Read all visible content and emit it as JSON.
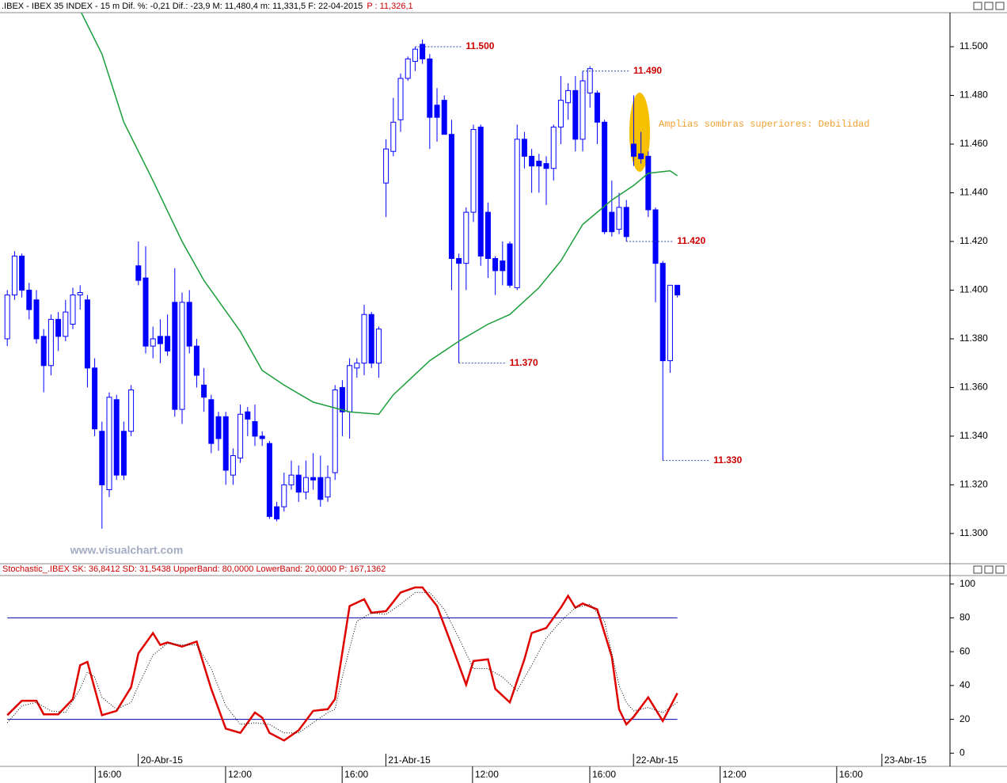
{
  "header": {
    "text": ".IBEX - IBEX 35 INDEX -  15 m Dif. %: -0,21 Dif.: -23,9 M: 11,480,4 m: 11,331,5 F: 22-04-2015",
    "price": "P : 11,326,1"
  },
  "chart_data": [
    {
      "type": "candlestick",
      "watermark": "www.visualchart.com",
      "annotation": "Amplias sombras superiores: Debilidad",
      "color": "#0000ff",
      "up_fill": "#ffffff",
      "open": [
        11.38,
        11.398,
        11.414,
        11.4,
        11.396,
        11.381,
        11.369,
        11.388,
        11.381,
        11.386,
        11.398,
        11.396,
        11.368,
        11.342,
        11.318,
        11.355,
        11.342,
        11.342,
        11.41,
        11.405,
        11.377,
        11.381,
        11.381,
        11.395,
        11.351,
        11.395,
        11.377,
        11.361,
        11.355,
        11.348,
        11.348,
        11.324,
        11.331,
        11.35,
        11.346,
        11.34,
        11.337,
        11.311,
        11.311,
        11.32,
        11.324,
        11.317,
        11.323,
        11.323,
        11.315,
        11.325,
        11.36,
        11.35,
        11.368,
        11.37,
        11.39,
        11.37,
        11.444,
        11.457,
        11.47,
        11.487,
        11.494,
        11.501,
        11.495,
        11.476,
        11.478,
        11.464,
        11.413,
        11.411,
        11.432,
        11.467,
        11.432,
        11.413,
        11.412,
        11.419,
        11.401,
        11.462,
        11.455,
        11.453,
        11.452,
        11.45,
        11.467,
        11.477,
        11.482,
        11.462,
        11.481,
        11.481,
        11.469,
        11.432,
        11.425,
        11.434,
        11.46,
        11.456,
        11.455,
        11.433,
        11.411,
        11.371,
        11.402
      ],
      "high": [
        11.4,
        11.416,
        11.415,
        11.403,
        11.4,
        11.384,
        11.39,
        11.391,
        11.396,
        11.401,
        11.402,
        11.398,
        11.372,
        11.346,
        11.358,
        11.357,
        11.346,
        11.361,
        11.42,
        11.418,
        11.385,
        11.388,
        11.39,
        11.409,
        11.399,
        11.4,
        11.38,
        11.368,
        11.357,
        11.35,
        11.35,
        11.335,
        11.353,
        11.352,
        11.353,
        11.342,
        11.338,
        11.313,
        11.325,
        11.33,
        11.328,
        11.33,
        11.333,
        11.332,
        11.328,
        11.361,
        11.363,
        11.372,
        11.372,
        11.394,
        11.391,
        11.385,
        11.462,
        11.479,
        11.489,
        11.496,
        11.5,
        11.503,
        11.497,
        11.483,
        11.48,
        11.47,
        11.415,
        11.434,
        11.468,
        11.468,
        11.436,
        11.414,
        11.42,
        11.42,
        11.468,
        11.465,
        11.458,
        11.456,
        11.455,
        11.468,
        11.488,
        11.485,
        11.488,
        11.49,
        11.492,
        11.482,
        11.47,
        11.445,
        11.44,
        11.437,
        11.48,
        11.465,
        11.457,
        11.434,
        11.412,
        11.402,
        11.402
      ],
      "low": [
        11.377,
        11.396,
        11.397,
        11.388,
        11.378,
        11.358,
        11.365,
        11.375,
        11.379,
        11.384,
        11.392,
        11.36,
        11.34,
        11.302,
        11.315,
        11.322,
        11.322,
        11.34,
        11.402,
        11.374,
        11.372,
        11.37,
        11.373,
        11.348,
        11.345,
        11.374,
        11.36,
        11.35,
        11.333,
        11.334,
        11.32,
        11.32,
        11.329,
        11.34,
        11.336,
        11.336,
        11.306,
        11.305,
        11.309,
        11.318,
        11.313,
        11.314,
        11.318,
        11.311,
        11.313,
        11.322,
        11.34,
        11.339,
        11.364,
        11.365,
        11.368,
        11.364,
        11.43,
        11.455,
        11.465,
        11.486,
        11.49,
        11.493,
        11.458,
        11.461,
        11.464,
        11.4,
        11.37,
        11.4,
        11.428,
        11.41,
        11.405,
        11.398,
        11.402,
        11.401,
        11.4,
        11.45,
        11.44,
        11.44,
        11.435,
        11.445,
        11.46,
        11.47,
        11.457,
        11.457,
        11.475,
        11.46,
        11.423,
        11.422,
        11.423,
        11.42,
        11.451,
        11.452,
        11.43,
        11.395,
        11.33,
        11.366,
        11.397
      ],
      "close": [
        11.398,
        11.414,
        11.4,
        11.392,
        11.38,
        11.369,
        11.388,
        11.381,
        11.391,
        11.398,
        11.399,
        11.368,
        11.343,
        11.32,
        11.356,
        11.324,
        11.324,
        11.359,
        11.404,
        11.377,
        11.38,
        11.378,
        11.375,
        11.351,
        11.395,
        11.377,
        11.365,
        11.356,
        11.337,
        11.339,
        11.326,
        11.332,
        11.349,
        11.347,
        11.34,
        11.339,
        11.307,
        11.306,
        11.32,
        11.324,
        11.317,
        11.323,
        11.322,
        11.314,
        11.323,
        11.359,
        11.35,
        11.369,
        11.37,
        11.39,
        11.37,
        11.384,
        11.458,
        11.469,
        11.487,
        11.495,
        11.499,
        11.495,
        11.471,
        11.471,
        11.464,
        11.413,
        11.411,
        11.432,
        11.466,
        11.414,
        11.413,
        11.408,
        11.408,
        11.402,
        11.462,
        11.455,
        11.451,
        11.451,
        11.45,
        11.467,
        11.478,
        11.482,
        11.462,
        11.486,
        11.491,
        11.469,
        11.424,
        11.424,
        11.434,
        11.422,
        11.455,
        11.454,
        11.433,
        11.411,
        11.371,
        11.402,
        11.398
      ],
      "ma": {
        "color": "#1a9e3a",
        "x": [
          10,
          13,
          16,
          20,
          24,
          27,
          32,
          35,
          38,
          42,
          47,
          51,
          53,
          58,
          62,
          66,
          69,
          73,
          76,
          79,
          83,
          86,
          88,
          91,
          92
        ],
        "values": [
          11.515,
          11.497,
          11.469,
          11.445,
          11.42,
          11.404,
          11.383,
          11.367,
          11.361,
          11.354,
          11.35,
          11.349,
          11.357,
          11.371,
          11.379,
          11.386,
          11.39,
          11.401,
          11.412,
          11.427,
          11.437,
          11.443,
          11.448,
          11.449,
          11.447
        ]
      },
      "levels": [
        {
          "value": 11.5,
          "label": "11.500"
        },
        {
          "value": 11.49,
          "label": "11.490"
        },
        {
          "value": 11.42,
          "label": "11.420"
        },
        {
          "value": 11.37,
          "label": "11.370"
        },
        {
          "value": 11.33,
          "label": "11.330"
        }
      ],
      "level_color": "#cc0000",
      "ylim": [
        11.2876,
        11.514
      ],
      "yticks": [
        {
          "value": 11.5,
          "label": "11.500"
        },
        {
          "value": 11.48,
          "label": "11.480"
        },
        {
          "value": 11.46,
          "label": "11.460"
        },
        {
          "value": 11.44,
          "label": "11.440"
        },
        {
          "value": 11.42,
          "label": "11.420"
        },
        {
          "value": 11.4,
          "label": "11.400"
        },
        {
          "value": 11.38,
          "label": "11.380"
        },
        {
          "value": 11.36,
          "label": "11.360"
        },
        {
          "value": 11.34,
          "label": "11.340"
        },
        {
          "value": 11.32,
          "label": "11.320"
        },
        {
          "value": 11.3,
          "label": "11.300"
        }
      ],
      "xlim": [
        -1,
        129.43
      ],
      "xticks": [
        {
          "value": 12.4,
          "label": "16:00"
        },
        {
          "value": 30.3,
          "label": "12:00"
        },
        {
          "value": 46.3,
          "label": "16:00"
        },
        {
          "value": 64.2,
          "label": "12:00"
        },
        {
          "value": 80.3,
          "label": "16:00"
        },
        {
          "value": 98.2,
          "label": "12:00"
        },
        {
          "value": 114.2,
          "label": "16:00"
        }
      ],
      "xticks_days": [
        {
          "value": 18.3,
          "label": "20-Abr-15"
        },
        {
          "value": 52.3,
          "label": "21-Abr-15"
        },
        {
          "value": 86.3,
          "label": "22-Abr-15"
        },
        {
          "value": 120.4,
          "label": "23-Abr-15"
        }
      ]
    },
    {
      "type": "line",
      "title": "Stochastic_.IBEX SK: 36,8412 SD: 31,5438 UpperBand: 80,0000 LowerBand: 20,0000 P: 167,1362",
      "series": [
        {
          "color": "#e00000",
          "x": [
            0,
            2,
            4,
            5,
            7,
            9,
            10,
            11,
            13,
            15,
            17,
            18,
            20,
            21,
            22,
            24,
            26,
            28,
            30,
            32,
            34,
            35,
            36,
            38,
            40,
            42,
            44,
            45,
            47,
            49,
            50,
            52,
            54,
            56,
            57,
            59,
            61,
            63,
            64,
            66,
            67,
            69,
            71,
            72,
            74,
            76,
            77,
            78,
            79,
            81,
            83,
            84,
            85,
            86,
            88,
            90,
            92
          ],
          "values": [
            22.5,
            31,
            31,
            23,
            23,
            32,
            52,
            54,
            22.5,
            25,
            39,
            59,
            71,
            64,
            65.5,
            63,
            66,
            38,
            14.5,
            12,
            24,
            21,
            12,
            7.5,
            13.5,
            25,
            26,
            32,
            87,
            91,
            83,
            84,
            95,
            98,
            98,
            87,
            64,
            40.5,
            54.5,
            55.5,
            38,
            30,
            55.5,
            71,
            74,
            86,
            93,
            86,
            88.5,
            85,
            57,
            26,
            17,
            21.5,
            33,
            19,
            35.5
          ]
        },
        {
          "color": "#000000",
          "dash": "1,2",
          "x": [
            0,
            2,
            4,
            6,
            8,
            10,
            11,
            12,
            13,
            15,
            17,
            18,
            20,
            22,
            24,
            26,
            28,
            30,
            32,
            34,
            36,
            38,
            40,
            42,
            44,
            45,
            46,
            47,
            48,
            50,
            52,
            54,
            56,
            58,
            60,
            62,
            64,
            66,
            68,
            70,
            72,
            74,
            76,
            78,
            80,
            82,
            84,
            85,
            86,
            88,
            90,
            92
          ],
          "values": [
            18,
            28,
            30,
            25,
            24,
            38,
            48,
            45,
            33,
            26,
            30,
            40,
            58,
            65,
            64,
            64,
            50,
            28,
            17,
            18,
            17,
            12,
            12,
            18,
            24,
            26,
            45,
            62,
            78,
            83,
            82,
            88,
            95,
            95,
            85,
            68,
            50,
            50,
            45,
            37,
            52,
            68,
            78,
            86,
            88,
            78,
            40,
            30,
            25,
            27,
            24,
            30
          ]
        }
      ],
      "bands": [
        80,
        20
      ],
      "band_color": "#0000aa",
      "ylim": [
        -5,
        105
      ],
      "yticks": [
        100,
        80,
        60,
        40,
        20,
        0
      ]
    }
  ]
}
